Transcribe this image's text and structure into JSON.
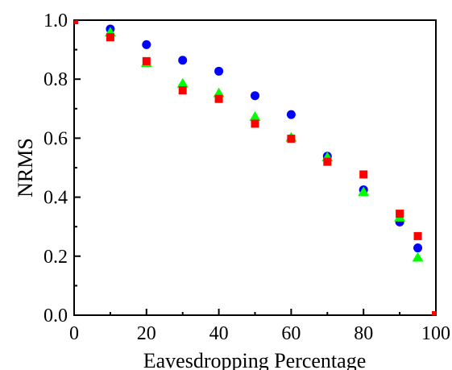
{
  "chart_data": {
    "type": "scatter",
    "title": "",
    "xlabel": "Eavesdropping Percentage",
    "ylabel": "NRMS",
    "xlim": [
      0,
      100
    ],
    "ylim": [
      0,
      1.0
    ],
    "x_ticks": [
      "0",
      "20",
      "40",
      "60",
      "80",
      "100"
    ],
    "y_ticks": [
      "0.0",
      "0.2",
      "0.4",
      "0.6",
      "0.8",
      "1.0"
    ],
    "grid": false,
    "legend": "none",
    "series": [
      {
        "marker": "circle",
        "color": "#0000ff",
        "x": [
          10,
          20,
          30,
          40,
          50,
          60,
          70,
          80,
          90,
          95
        ],
        "y": [
          0.97,
          0.917,
          0.864,
          0.827,
          0.744,
          0.68,
          0.539,
          0.425,
          0.316,
          0.228
        ]
      },
      {
        "marker": "triangle",
        "color": "#00ff00",
        "x": [
          10,
          20,
          30,
          40,
          50,
          60,
          70,
          80,
          90,
          95
        ],
        "y": [
          0.958,
          0.855,
          0.785,
          0.752,
          0.672,
          0.602,
          0.535,
          0.417,
          0.331,
          0.195
        ]
      },
      {
        "marker": "square",
        "color": "#ff0000",
        "x": [
          0,
          10,
          20,
          30,
          40,
          50,
          60,
          70,
          80,
          90,
          95,
          100
        ],
        "y": [
          1.0,
          0.942,
          0.861,
          0.762,
          0.733,
          0.649,
          0.598,
          0.52,
          0.477,
          0.344,
          0.268,
          0.0
        ]
      }
    ]
  }
}
